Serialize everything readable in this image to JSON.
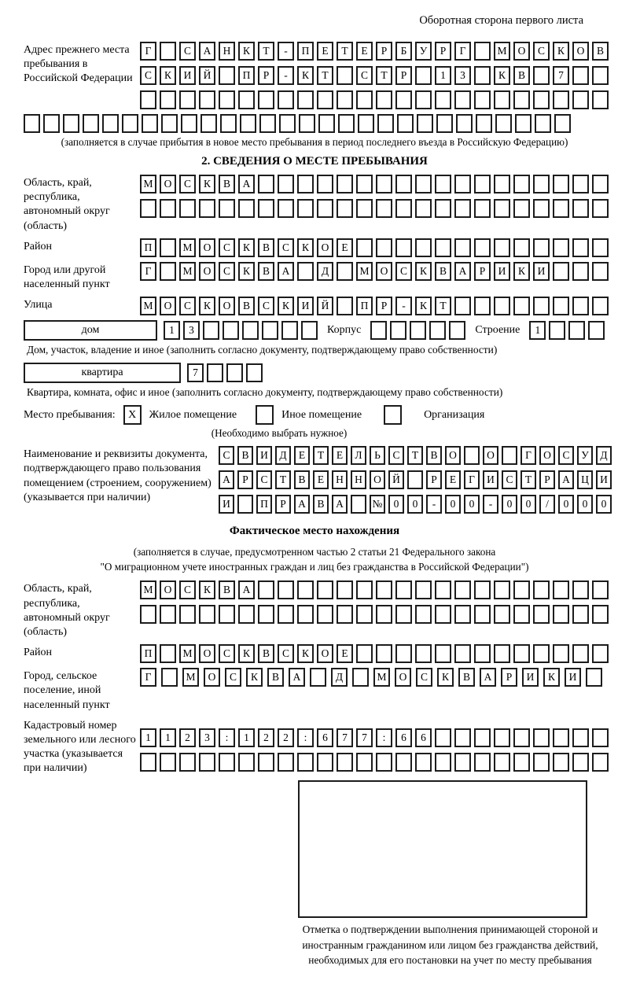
{
  "page": {
    "top_right_title": "Оборотная сторона первого листа"
  },
  "prev_address": {
    "label": "Адрес прежнего места пребывания в Российской Федерации",
    "rows": [
      {
        "len": 24,
        "text": "Г САНКТ-ПЕТЕРБУРГ МОСКОВ"
      },
      {
        "len": 24,
        "text": "СКИЙ ПР-КТ СТР 13 КВ 7  "
      },
      {
        "len": 24,
        "text": ""
      }
    ],
    "extra_row": {
      "len": 28,
      "text": ""
    },
    "note": "(заполняется в случае прибытия в новое место пребывания в период последнего въезда в Российскую Федерацию)"
  },
  "section2": {
    "header": "2. СВЕДЕНИЯ О МЕСТЕ ПРЕБЫВАНИЯ",
    "region": {
      "label": "Область, край, республика, автономный округ (область)",
      "rows": [
        {
          "len": 24,
          "text": "МОСКВА"
        },
        {
          "len": 24,
          "text": ""
        }
      ]
    },
    "district": {
      "label": "Район",
      "row": {
        "len": 24,
        "text": "П МОСКВСКОЕ"
      }
    },
    "city": {
      "label": "Город или другой населенный пункт",
      "row": {
        "len": 24,
        "text": "Г МОСКВА Д МОСКВАРИКИ"
      }
    },
    "street": {
      "label": "Улица",
      "row": {
        "len": 24,
        "text": "МОСКОВСКИЙ ПР-КТ"
      }
    },
    "house": {
      "box_label": "дом",
      "cells": {
        "len": 8,
        "text": "13"
      },
      "korpus_label": "Корпус",
      "korpus_cells": {
        "len": 5,
        "text": ""
      },
      "stroenie_label": "Строение",
      "stroenie_cells": {
        "len": 4,
        "text": "1"
      },
      "caption": "Дом, участок, владение и иное (заполнить согласно документу, подтверждающему право собственности)"
    },
    "apartment": {
      "box_label": "квартира",
      "cells": {
        "len": 4,
        "text": "7"
      },
      "caption": "Квартира, комната, офис и иное (заполнить согласно документу, подтверждающему право собственности)"
    },
    "stay_type": {
      "label": "Место пребывания:",
      "options": [
        {
          "label": "Жилое помещение",
          "checked": "X"
        },
        {
          "label": "Иное помещение",
          "checked": ""
        },
        {
          "label": "Организация",
          "checked": ""
        }
      ],
      "note": "(Необходимо выбрать нужное)"
    },
    "document": {
      "label": "Наименование и реквизиты документа, подтверждающего право пользования помещением (строением, сооружением) (указывается при наличии)",
      "rows": [
        {
          "len": 21,
          "text": "СВИДЕТЕЛЬСТВО О ГОСУД"
        },
        {
          "len": 21,
          "text": "АРСТВЕННОЙ РЕГИСТРАЦИ"
        },
        {
          "len": 21,
          "text": "И ПРАВА №00-00-00/000"
        }
      ]
    }
  },
  "section3": {
    "header": "Фактическое место нахождения",
    "note_line1": "(заполняется в случае, предусмотренном частью 2 статьи 21 Федерального закона",
    "note_line2": "\"О миграционном учете иностранных граждан и лиц без гражданства в Российской Федерации\")",
    "region": {
      "label": "Область, край, республика, автономный округ (область)",
      "rows": [
        {
          "len": 24,
          "text": "МОСКВА"
        },
        {
          "len": 24,
          "text": ""
        }
      ]
    },
    "district": {
      "label": "Район",
      "row": {
        "len": 24,
        "text": "П МОСКВСКОЕ"
      }
    },
    "city": {
      "label": "Город, сельское поселение, иной населенный пункт",
      "row": {
        "len": 22,
        "text": "Г МОСКВА Д МОСКВАРИКИ"
      }
    },
    "cadastral": {
      "label": "Кадастровый номер земельного или лесного участка (указывается при наличии)",
      "rows": [
        {
          "len": 24,
          "text": "1123:122:677:66"
        },
        {
          "len": 24,
          "text": ""
        }
      ]
    }
  },
  "stamp_box": {
    "caption": "Отметка о подтверждении выполнения принимающей стороной и иностранным гражданином или лицом без гражданства действий, необходимых для его постановки на учет по месту пребывания"
  }
}
